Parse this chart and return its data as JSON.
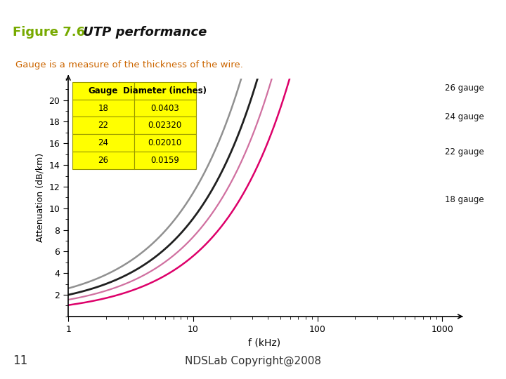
{
  "title_fig": "Figure 7.6",
  "title_text": " UTP performance",
  "subtitle": "Gauge is a measure of the thickness of the wire.",
  "xlabel": "f (kHz)",
  "ylabel": "Attenuation (dB/km)",
  "top_bar_color": "#cc0000",
  "sep_bar_color": "#cc0000",
  "bottom_bar_color": "#cc0000",
  "title_color": "#77aa00",
  "subtitle_color": "#cc6600",
  "footer_text": "NDSLab Copyright@2008",
  "footer_page": "11",
  "background_color": "#ffffff",
  "gauge_table": {
    "headers": [
      "Gauge",
      "Diameter (inches)"
    ],
    "rows": [
      [
        "18",
        "0.0403"
      ],
      [
        "22",
        "0.02320"
      ],
      [
        "24",
        "0.02010"
      ],
      [
        "26",
        "0.0159"
      ]
    ]
  },
  "lines": [
    {
      "label": "26 gauge",
      "color": "#909090",
      "linewidth": 1.8,
      "a": 0.85,
      "b": 1.75,
      "p": 0.78
    },
    {
      "label": "24 gauge",
      "color": "#202020",
      "linewidth": 2.0,
      "a": 0.6,
      "b": 1.4,
      "p": 0.78
    },
    {
      "label": "22 gauge",
      "color": "#d070a0",
      "linewidth": 1.6,
      "a": 0.4,
      "b": 1.15,
      "p": 0.78
    },
    {
      "label": "18 gauge",
      "color": "#dd006a",
      "linewidth": 1.8,
      "a": 0.15,
      "b": 0.9,
      "p": 0.78
    }
  ],
  "line_labels": [
    {
      "text": "26 gauge",
      "xf": 0.96,
      "yf": 0.96
    },
    {
      "text": "24 gauge",
      "xf": 0.96,
      "yf": 0.84
    },
    {
      "text": "22 gauge",
      "xf": 0.96,
      "yf": 0.69
    },
    {
      "text": "18 gauge",
      "xf": 0.96,
      "yf": 0.49
    }
  ],
  "ylim": [
    0,
    22
  ],
  "yticks": [
    2,
    4,
    6,
    8,
    10,
    12,
    14,
    16,
    18,
    20
  ],
  "xlim_log": [
    1,
    1400
  ],
  "xtick_positions": [
    1,
    10,
    100,
    1000
  ],
  "xtick_labels": [
    "1",
    "10",
    "100",
    "1000"
  ]
}
